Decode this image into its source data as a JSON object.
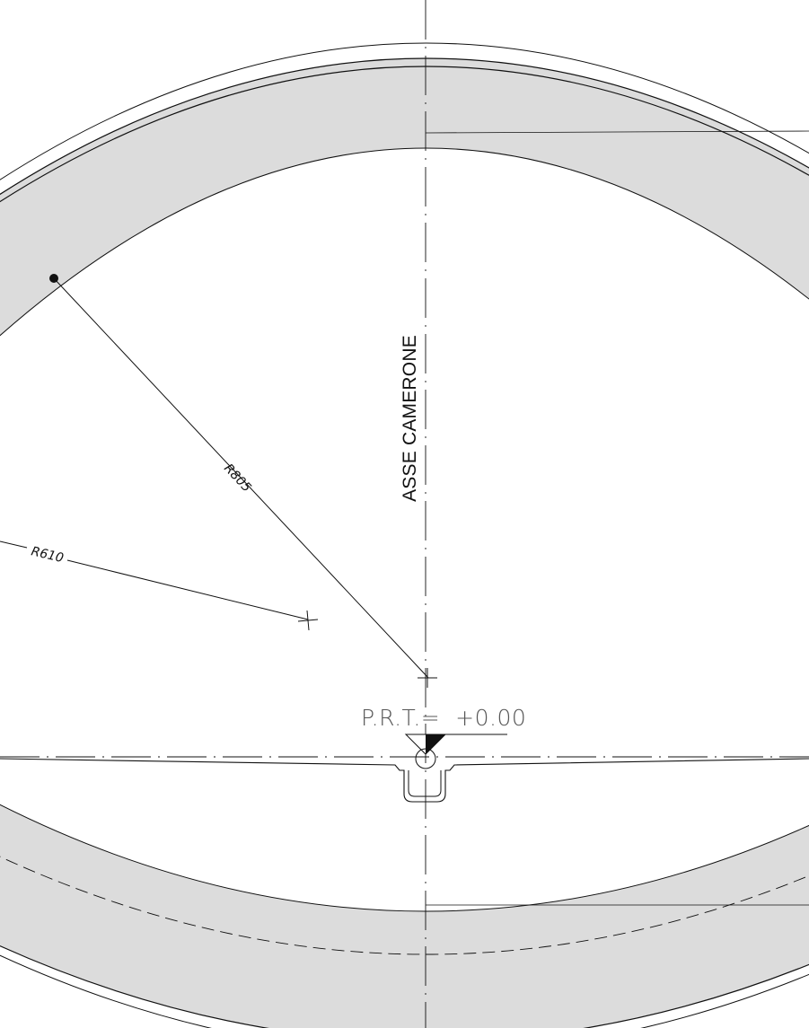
{
  "drawing": {
    "axis_label": "ASSE CAMERONE",
    "level_label": "P.R.T.=  +0.00",
    "dimensions": {
      "large_radius": "R805",
      "small_radius": "R610"
    },
    "colors": {
      "line": "#111111",
      "fill": "#dcdcdc",
      "background": "#ffffff"
    }
  }
}
